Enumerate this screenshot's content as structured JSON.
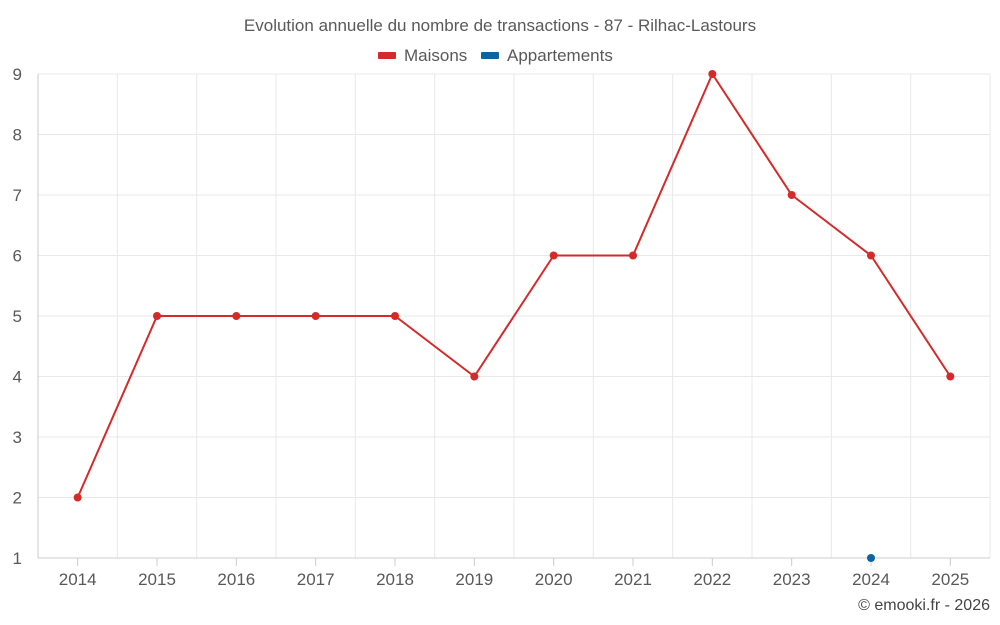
{
  "chart_data": {
    "type": "line",
    "title": "Evolution annuelle du nombre de transactions - 87 - Rilhac-Lastours",
    "categories": [
      "2014",
      "2015",
      "2016",
      "2017",
      "2018",
      "2019",
      "2020",
      "2021",
      "2022",
      "2023",
      "2024",
      "2025"
    ],
    "series": [
      {
        "name": "Maisons",
        "color": "#d42a2a",
        "values": [
          2,
          5,
          5,
          5,
          5,
          4,
          6,
          6,
          9,
          7,
          6,
          4
        ]
      },
      {
        "name": "Appartements",
        "color": "#0f649f",
        "values": [
          null,
          null,
          null,
          null,
          null,
          null,
          null,
          null,
          null,
          null,
          1,
          null
        ]
      }
    ],
    "ylim": [
      1,
      9
    ],
    "yticks": [
      1,
      2,
      3,
      4,
      5,
      6,
      7,
      8,
      9
    ],
    "xlabel": "",
    "ylabel": "",
    "grid": true,
    "legend_position": "top-center"
  },
  "credit": "© emooki.fr - 2026"
}
